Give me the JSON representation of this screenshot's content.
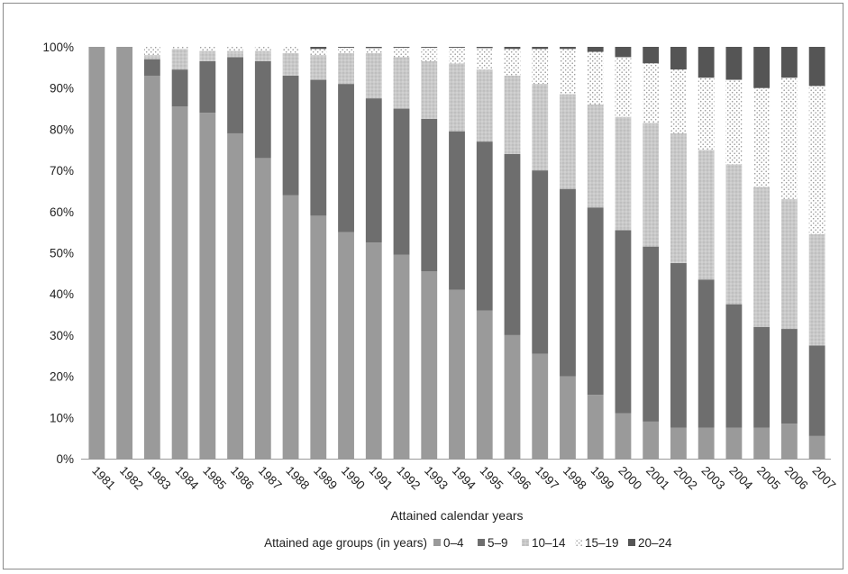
{
  "chart_data": {
    "type": "bar",
    "stacked": true,
    "percent": true,
    "title": "",
    "xlabel": "Attained calendar years",
    "ylabel": "",
    "ylim": [
      0,
      100
    ],
    "y_ticks": [
      "0%",
      "10%",
      "20%",
      "30%",
      "40%",
      "50%",
      "60%",
      "70%",
      "80%",
      "90%",
      "100%"
    ],
    "grid": false,
    "legend_title": "Attained age groups (in years)",
    "legend_position": "bottom",
    "categories": [
      "1981",
      "1982",
      "1983",
      "1984",
      "1985",
      "1986",
      "1987",
      "1988",
      "1989",
      "1990",
      "1991",
      "1992",
      "1993",
      "1994",
      "1995",
      "1996",
      "1997",
      "1998",
      "1999",
      "2000",
      "2001",
      "2002",
      "2003",
      "2004",
      "2005",
      "2006",
      "2007"
    ],
    "series": [
      {
        "name": "0–4",
        "color": "#9a9a9a",
        "pattern": "solid",
        "values": [
          100,
          100,
          93,
          85.5,
          84,
          79,
          73,
          64,
          59,
          55,
          52.5,
          49.5,
          45.5,
          41,
          36,
          30,
          25.5,
          20,
          15.5,
          11,
          9,
          7.5,
          7.5,
          7.5,
          7.5,
          8.5,
          5.5
        ]
      },
      {
        "name": "5–9",
        "color": "#6e6e6e",
        "pattern": "solid",
        "values": [
          0,
          0,
          4,
          9,
          12.5,
          18.5,
          23.5,
          29,
          33,
          36,
          35,
          35.5,
          37,
          38.5,
          41,
          44,
          44.5,
          45.5,
          45.5,
          44.5,
          42.5,
          40,
          36,
          30,
          24.5,
          23,
          22
        ]
      },
      {
        "name": "10–14",
        "color": "#c8c8c8",
        "pattern": "dots-light",
        "values": [
          0,
          0,
          1,
          5,
          2.5,
          1.5,
          2.5,
          5.5,
          6,
          7.5,
          11,
          12.5,
          14,
          16.5,
          17.5,
          19,
          21,
          23,
          25,
          27.5,
          30,
          31.5,
          31.5,
          34,
          34,
          31.5,
          27
        ]
      },
      {
        "name": "15–19",
        "color": "#ededed",
        "pattern": "dots",
        "values": [
          0,
          0,
          2,
          0.5,
          1,
          1,
          1,
          1.5,
          1.5,
          1.3,
          1.2,
          2.3,
          3.3,
          3.8,
          5.2,
          6.5,
          8.5,
          11,
          12.8,
          14.5,
          14.5,
          15.5,
          17.5,
          20.5,
          24,
          29.5,
          36
        ]
      },
      {
        "name": "20–24",
        "color": "#555555",
        "pattern": "solid",
        "values": [
          0,
          0,
          0,
          0,
          0,
          0,
          0,
          0,
          0.5,
          0.2,
          0.3,
          0.2,
          0.2,
          0.2,
          0.3,
          0.5,
          0.5,
          0.5,
          1.2,
          2.5,
          4,
          5.5,
          7.5,
          8,
          10,
          7.5,
          9.5
        ]
      }
    ]
  }
}
